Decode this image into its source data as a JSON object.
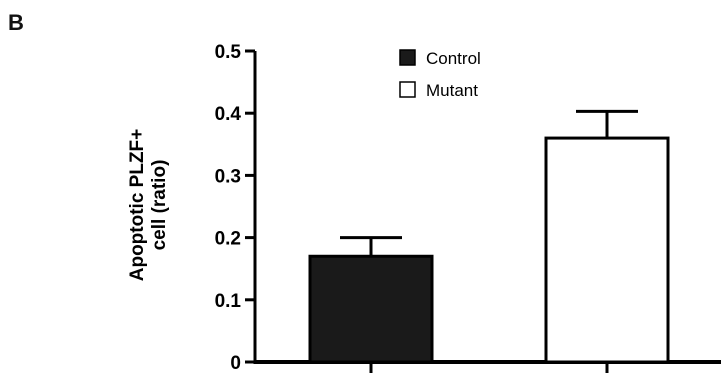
{
  "panel_label": "B",
  "chart_data": {
    "type": "bar",
    "title": "",
    "xlabel": "",
    "ylabel_lines": [
      "Apoptotic PLZF+",
      "cell (ratio)"
    ],
    "ylim": [
      0,
      0.5
    ],
    "yticks": [
      "0",
      "0.1",
      "0.2",
      "0.3",
      "0.4",
      "0.5"
    ],
    "grid": false,
    "legend_position": "top-center",
    "series": [
      {
        "name": "Control",
        "value": 0.17,
        "error": 0.03,
        "fill": "#1a1a1a"
      },
      {
        "name": "Mutant",
        "value": 0.36,
        "error": 0.043,
        "fill": "#ffffff"
      }
    ]
  }
}
